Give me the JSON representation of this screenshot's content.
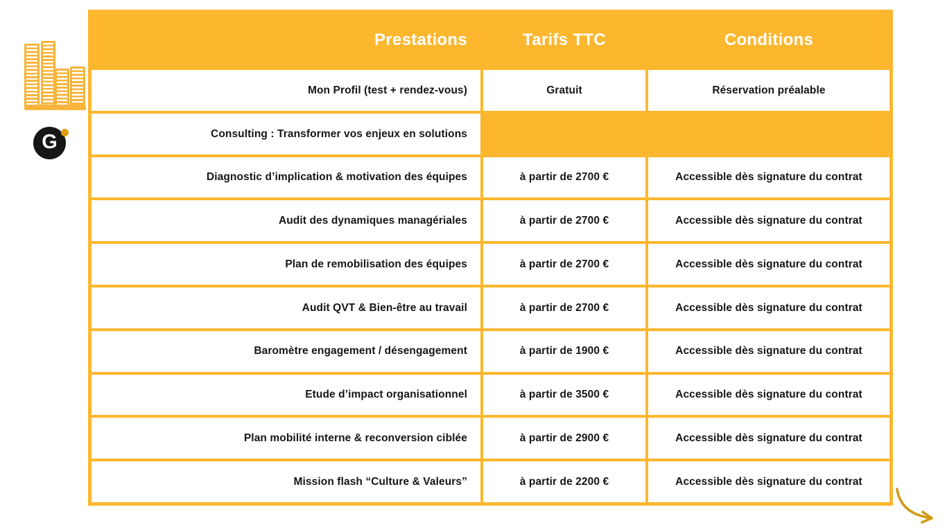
{
  "logo": {
    "monogram": "G",
    "buildings_color": "#F8B43C",
    "mark_background": "#161616",
    "dot_color": "#DE9B0C"
  },
  "table": {
    "accent_color": "#FCB72E",
    "header_text_color": "#FFFFFF",
    "body_text_color": "#161616",
    "header": {
      "prestations": "Prestations",
      "tarifs": "Tarifs TTC",
      "conditions": "Conditions"
    },
    "rows": [
      {
        "prestation": "Mon Profil (test + rendez-vous)",
        "tarif": "Gratuit",
        "condition": "Réservation préalable",
        "section": false
      },
      {
        "prestation": "Consulting : Transformer vos enjeux en solutions",
        "tarif": "",
        "condition": "",
        "section": true
      },
      {
        "prestation": "Diagnostic d’implication & motivation des équipes",
        "tarif": "à partir de 2700 €",
        "condition": "Accessible dès signature du contrat",
        "section": false
      },
      {
        "prestation": "Audit des dynamiques managériales",
        "tarif": "à partir de 2700 €",
        "condition": "Accessible dès signature du contrat",
        "section": false
      },
      {
        "prestation": "Plan de remobilisation des équipes",
        "tarif": "à partir de 2700 €",
        "condition": "Accessible dès signature du contrat",
        "section": false
      },
      {
        "prestation": "Audit QVT & Bien-être au travail",
        "tarif": "à partir de 2700 €",
        "condition": "Accessible dès signature du contrat",
        "section": false
      },
      {
        "prestation": "Baromètre engagement / désengagement",
        "tarif": "à partir de 1900 €",
        "condition": "Accessible dès signature du contrat",
        "section": false
      },
      {
        "prestation": "Etude d’impact organisationnel",
        "tarif": "à partir de 3500 €",
        "condition": "Accessible dès signature du contrat",
        "section": false
      },
      {
        "prestation": "Plan mobilité interne & reconversion ciblée",
        "tarif": "à partir de 2900 €",
        "condition": "Accessible dès signature du contrat",
        "section": false
      },
      {
        "prestation": "Mission flash “Culture & Valeurs”",
        "tarif": "à partir de 2200 €",
        "condition": "Accessible dès signature du contrat",
        "section": false
      }
    ]
  },
  "arrow": {
    "color": "#CF9A17"
  }
}
